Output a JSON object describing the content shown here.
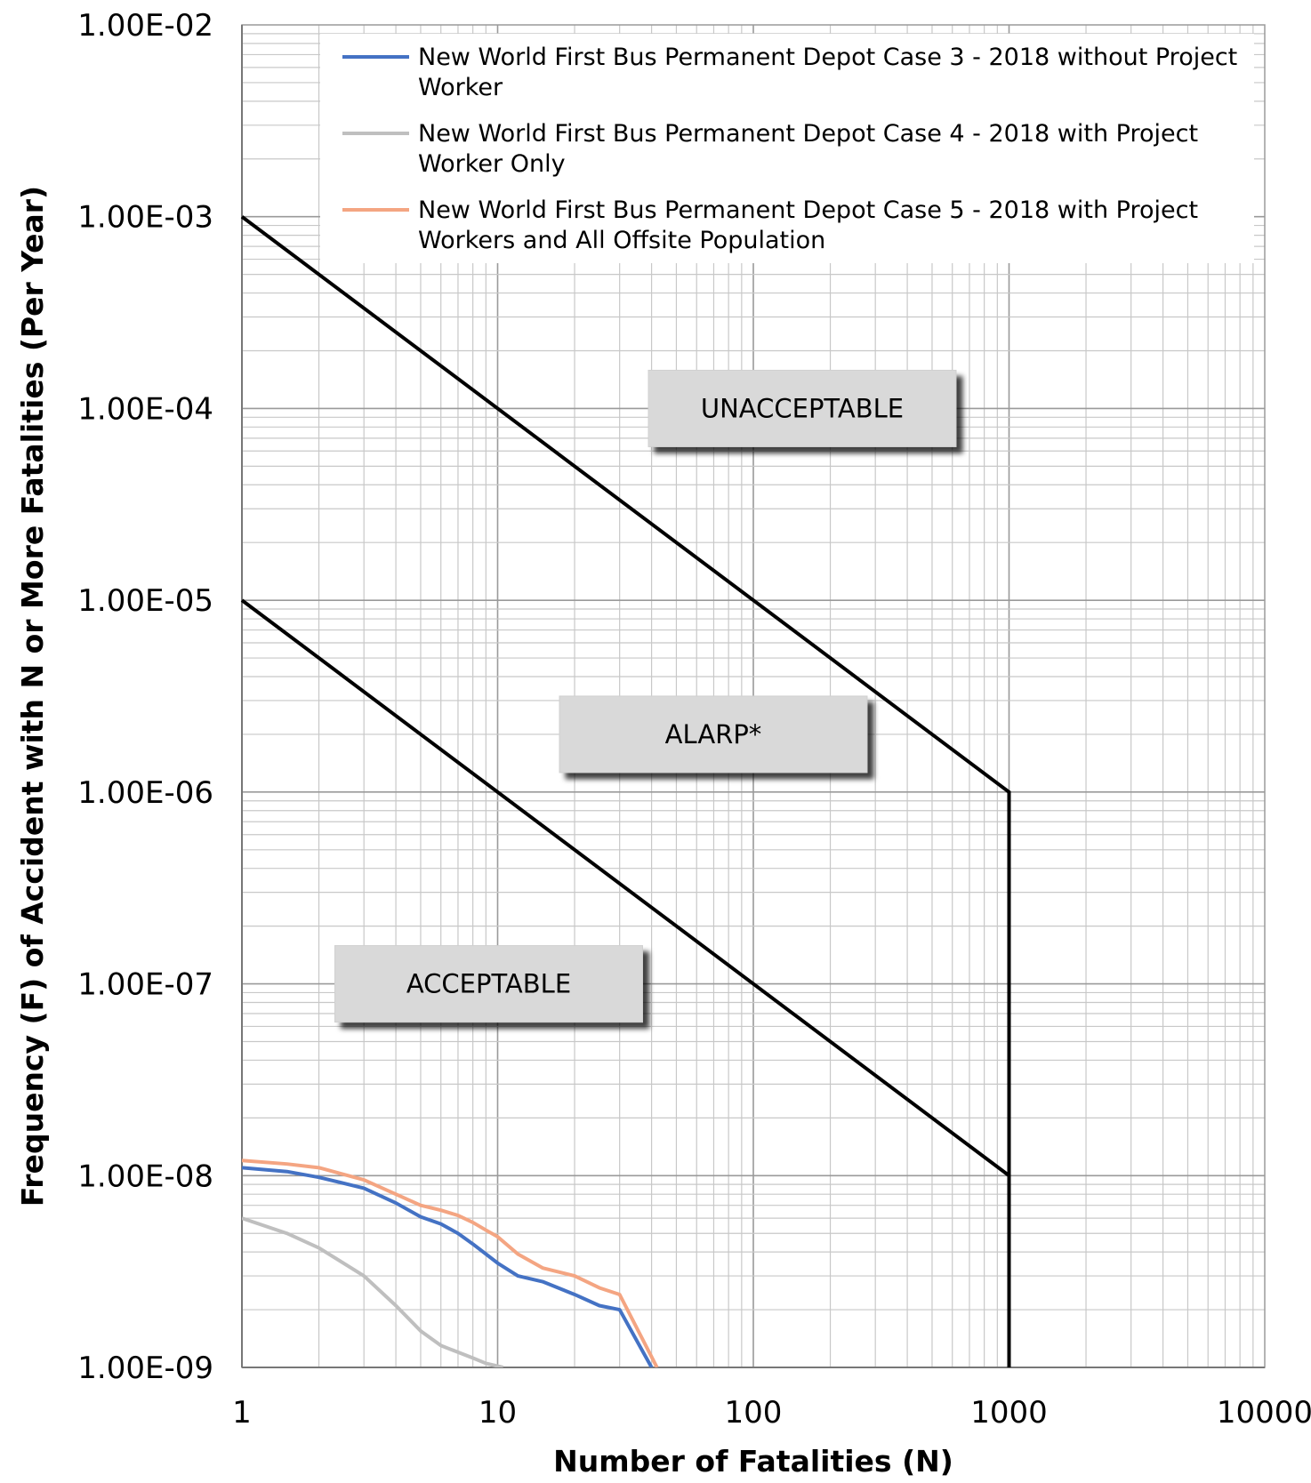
{
  "chart_data": {
    "type": "line",
    "title": "",
    "xlabel": "Number of Fatalities (N)",
    "ylabel": "Frequency (F) of Accident with N or More Fatalities (Per Year)",
    "x_scale": "log",
    "y_scale": "log",
    "xlim": [
      1,
      10000
    ],
    "ylim": [
      1e-09,
      0.01
    ],
    "grid": true,
    "legend_position": "top-right",
    "x_tick_labels": [
      "1",
      "10",
      "100",
      "1000",
      "10000"
    ],
    "y_tick_labels": [
      "1.00E-02",
      "1.00E-03",
      "1.00E-04",
      "1.00E-05",
      "1.00E-06",
      "1.00E-07",
      "1.00E-08",
      "1.00E-09"
    ],
    "criteria_lines": [
      {
        "x": [
          1,
          1000,
          1000
        ],
        "y": [
          0.001,
          1e-06,
          1e-09
        ],
        "color": "#000000"
      },
      {
        "x": [
          1,
          1000
        ],
        "y": [
          1e-05,
          1e-08
        ],
        "color": "#000000"
      }
    ],
    "region_labels": [
      {
        "text": "UNACCEPTABLE",
        "x": 100,
        "y": 0.0001
      },
      {
        "text": "ALARP*",
        "x": 100,
        "y": 2e-06
      },
      {
        "text": "ACCEPTABLE",
        "x": 10,
        "y": 1e-07
      }
    ],
    "series": [
      {
        "name": "New World First Bus Permanent Depot Case 3 - 2018 without Project Worker",
        "legend_lines": [
          "New World First Bus Permanent Depot Case 3 - 2018 without Project",
          "Worker"
        ],
        "color": "#4472C4",
        "x": [
          1,
          1.5,
          2,
          3,
          4,
          5,
          6,
          7,
          8,
          9,
          10,
          12,
          15,
          20,
          25,
          30,
          40
        ],
        "y": [
          1.1e-08,
          1.05e-08,
          9.8e-09,
          8.6e-09,
          7.2e-09,
          6.1e-09,
          5.6e-09,
          5e-09,
          4.4e-09,
          3.9e-09,
          3.5e-09,
          3e-09,
          2.8e-09,
          2.4e-09,
          2.1e-09,
          2e-09,
          1e-09
        ]
      },
      {
        "name": "New World First Bus Permanent Depot Case 4 - 2018 with Project Worker Only",
        "legend_lines": [
          "New World First Bus Permanent Depot Case 4 - 2018 with Project",
          "Worker Only"
        ],
        "color": "#BFBFBF",
        "x": [
          1,
          1.5,
          2,
          3,
          4,
          5,
          6,
          7,
          8,
          9,
          10.5
        ],
        "y": [
          6e-09,
          5e-09,
          4.2e-09,
          3e-09,
          2.1e-09,
          1.55e-09,
          1.3e-09,
          1.2e-09,
          1.12e-09,
          1.05e-09,
          1e-09
        ]
      },
      {
        "name": "New World First Bus Permanent Depot Case 5 - 2018 with Project Workers and All Offsite Population",
        "legend_lines": [
          "New World First Bus Permanent Depot Case 5 - 2018 with Project",
          "Workers and All Offsite Population"
        ],
        "color": "#F4A582",
        "x": [
          1,
          1.5,
          2,
          3,
          4,
          5,
          6,
          7,
          8,
          9,
          10,
          12,
          15,
          20,
          25,
          30,
          42
        ],
        "y": [
          1.2e-08,
          1.15e-08,
          1.1e-08,
          9.5e-09,
          8e-09,
          7e-09,
          6.6e-09,
          6.2e-09,
          5.7e-09,
          5.2e-09,
          4.8e-09,
          3.9e-09,
          3.3e-09,
          3e-09,
          2.6e-09,
          2.4e-09,
          1e-09
        ]
      }
    ]
  }
}
